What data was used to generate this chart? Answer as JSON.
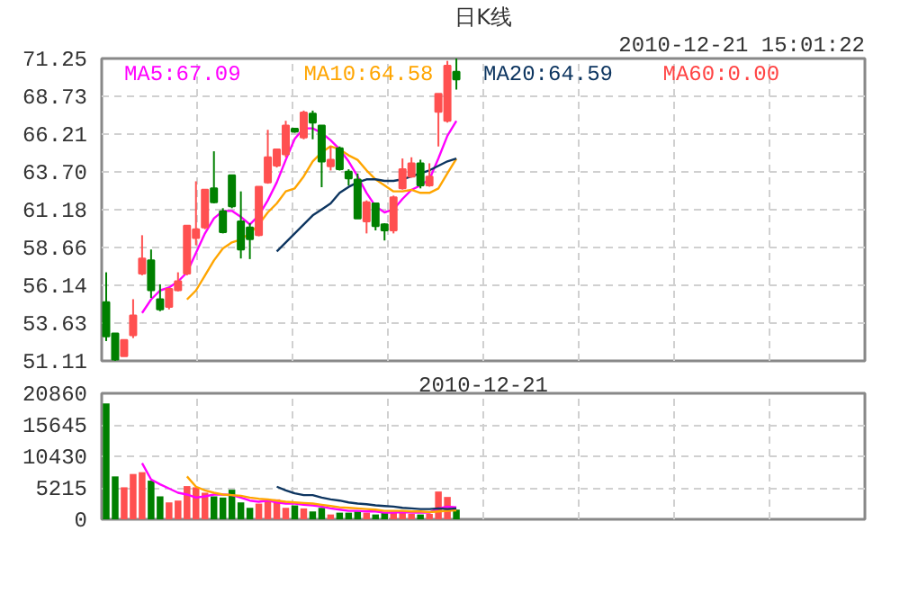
{
  "chart_data": [
    {
      "type": "candlestick",
      "title": "日K线",
      "annotations": [
        "2010-12-21 15:01:22"
      ],
      "categories": [
        null,
        null,
        null,
        null,
        null,
        null,
        null,
        null,
        null,
        null,
        null,
        null,
        null,
        null,
        null,
        null,
        null,
        null,
        null,
        null,
        null,
        null,
        null,
        null,
        null,
        null,
        null,
        null,
        null,
        null,
        null,
        null,
        null,
        null,
        null,
        null,
        null,
        null,
        null,
        null,
        null,
        null,
        null,
        null,
        null,
        null,
        null,
        null,
        null,
        null,
        null,
        null,
        null,
        null,
        null,
        null,
        null,
        null,
        null,
        null,
        null,
        null,
        null,
        null,
        null,
        null,
        null,
        null,
        null,
        null,
        null,
        null,
        null,
        null,
        null,
        null,
        null,
        null,
        null,
        null,
        null,
        null,
        null,
        null,
        null
      ],
      "ohlc": [
        [
          55.02,
          57.01,
          52.43,
          52.75
        ],
        [
          52.94,
          52.94,
          51.11,
          51.2
        ],
        [
          51.43,
          52.51,
          51.43,
          52.51
        ],
        [
          52.82,
          55.22,
          52.63,
          54.14
        ],
        [
          56.93,
          59.48,
          56.81,
          57.93
        ],
        [
          57.81,
          58.53,
          55.3,
          55.82
        ],
        [
          55.22,
          56.21,
          54.42,
          54.54
        ],
        [
          54.7,
          55.9,
          54.54,
          55.9
        ],
        [
          55.82,
          57.01,
          55.74,
          56.41
        ],
        [
          56.93,
          60.12,
          56.81,
          60.12
        ],
        [
          59.29,
          63.07,
          58.81,
          59.88
        ],
        [
          60.0,
          62.52,
          59.88,
          62.52
        ],
        [
          62.6,
          65.07,
          61.6,
          61.68
        ],
        [
          61.08,
          61.28,
          59.6,
          59.68
        ],
        [
          63.47,
          63.47,
          61.28,
          61.4
        ],
        [
          60.4,
          62.4,
          57.93,
          58.53
        ],
        [
          60.0,
          60.28,
          57.89,
          59.21
        ],
        [
          59.48,
          62.71,
          59.41,
          62.71
        ],
        [
          62.99,
          66.5,
          62.91,
          64.67
        ],
        [
          64.11,
          65.19,
          63.99,
          65.19
        ],
        [
          64.87,
          67.1,
          64.67,
          66.78
        ],
        [
          66.58,
          66.58,
          66.3,
          66.38
        ],
        [
          65.99,
          67.78,
          65.87,
          67.66
        ],
        [
          67.58,
          67.78,
          65.87,
          66.98
        ],
        [
          66.78,
          66.78,
          62.68,
          64.39
        ],
        [
          64.07,
          65.39,
          63.79,
          64.51
        ],
        [
          65.27,
          65.39,
          63.79,
          63.87
        ],
        [
          63.71,
          63.87,
          62.8,
          63.27
        ],
        [
          63.19,
          63.59,
          60.6,
          60.6
        ],
        [
          60.4,
          61.8,
          59.6,
          61.68
        ],
        [
          61.6,
          61.6,
          59.8,
          60.08
        ],
        [
          60.2,
          60.28,
          59.13,
          59.8
        ],
        [
          59.8,
          62.12,
          59.6,
          62.0
        ],
        [
          62.6,
          64.59,
          62.52,
          63.87
        ],
        [
          63.39,
          64.67,
          63.31,
          64.27
        ],
        [
          64.27,
          64.51,
          62.6,
          62.8
        ],
        [
          62.8,
          64.27,
          62.71,
          63.39
        ],
        [
          67.7,
          68.9,
          65.39,
          68.9
        ],
        [
          67.1,
          71.09,
          66.98,
          70.77
        ],
        [
          70.37,
          71.25,
          69.18,
          69.85
        ],
        null,
        null,
        null,
        null,
        null,
        null,
        null,
        null,
        null,
        null,
        null,
        null,
        null,
        null,
        null,
        null,
        null,
        null,
        null,
        null,
        null,
        null,
        null,
        null,
        null,
        null,
        null,
        null,
        null,
        null,
        null,
        null,
        null,
        null,
        null,
        null,
        null,
        null,
        null,
        null,
        null,
        null,
        null,
        null,
        null
      ],
      "colors": [
        "#008000",
        "#008000",
        "#ff5050",
        "#ff5050",
        "#ff5050",
        "#008000",
        "#008000",
        "#ff5050",
        "#ff5050",
        "#ff5050",
        "#ff5050",
        "#ff5050",
        "#008000",
        "#008000",
        "#008000",
        "#008000",
        "#008000",
        "#ff5050",
        "#ff5050",
        "#ff5050",
        "#ff5050",
        "#008000",
        "#ff5050",
        "#008000",
        "#008000",
        "#ff5050",
        "#008000",
        "#008000",
        "#008000",
        "#ff5050",
        "#008000",
        "#008000",
        "#ff5050",
        "#ff5050",
        "#ff5050",
        "#008000",
        "#ff5050",
        "#ff5050",
        "#ff5050",
        "#008000",
        null,
        null,
        null,
        null,
        null,
        null,
        null,
        null,
        null,
        null,
        null,
        null,
        null,
        null,
        null,
        null,
        null,
        null,
        null,
        null,
        null,
        null,
        null,
        null,
        null,
        null,
        null,
        null,
        null,
        null,
        null,
        null,
        null,
        null,
        null,
        null,
        null,
        null,
        null,
        null,
        null,
        null,
        null,
        null,
        null
      ],
      "series": [
        {
          "type": "line",
          "name": "MA5:67.09",
          "color": "#ff00ff",
          "values": [
            null,
            null,
            null,
            null,
            54.3,
            55.2,
            55.8,
            56.0,
            56.4,
            57.0,
            58.3,
            59.6,
            60.6,
            61.1,
            61.1,
            60.7,
            60.2,
            60.8,
            61.8,
            63.0,
            64.5,
            65.9,
            66.6,
            66.6,
            66.3,
            65.8,
            65.2,
            64.4,
            63.4,
            62.3,
            61.4,
            61.0,
            61.2,
            61.9,
            62.5,
            62.8,
            63.2,
            64.6,
            66.1,
            67.09,
            null,
            null,
            null,
            null,
            null,
            null,
            null,
            null,
            null,
            null,
            null,
            null,
            null,
            null,
            null,
            null,
            null,
            null,
            null,
            null,
            null,
            null,
            null,
            null,
            null,
            null,
            null,
            null,
            null,
            null,
            null,
            null,
            null,
            null,
            null,
            null,
            null,
            null,
            null,
            null,
            null,
            null,
            null,
            null,
            null
          ]
        },
        {
          "type": "line",
          "name": "MA10:64.58",
          "color": "#ffa500",
          "values": [
            null,
            null,
            null,
            null,
            null,
            null,
            null,
            null,
            null,
            55.2,
            55.8,
            56.8,
            57.8,
            58.6,
            59.0,
            59.2,
            59.6,
            60.2,
            61.0,
            61.6,
            62.4,
            62.6,
            63.4,
            64.4,
            65.0,
            65.4,
            65.2,
            64.8,
            64.5,
            63.8,
            63.2,
            62.8,
            62.4,
            62.4,
            62.5,
            62.3,
            62.3,
            62.6,
            63.6,
            64.58,
            null,
            null,
            null,
            null,
            null,
            null,
            null,
            null,
            null,
            null,
            null,
            null,
            null,
            null,
            null,
            null,
            null,
            null,
            null,
            null,
            null,
            null,
            null,
            null,
            null,
            null,
            null,
            null,
            null,
            null,
            null,
            null,
            null,
            null,
            null,
            null,
            null,
            null,
            null,
            null,
            null,
            null,
            null,
            null,
            null
          ]
        },
        {
          "type": "line",
          "name": "MA20:64.59",
          "color": "#0d3560",
          "values": [
            null,
            null,
            null,
            null,
            null,
            null,
            null,
            null,
            null,
            null,
            null,
            null,
            null,
            null,
            null,
            null,
            null,
            null,
            null,
            58.4,
            59.0,
            59.6,
            60.2,
            60.8,
            61.2,
            61.6,
            62.3,
            62.7,
            63.0,
            63.2,
            63.2,
            63.1,
            63.1,
            63.2,
            63.4,
            63.6,
            63.8,
            64.1,
            64.4,
            64.59,
            null,
            null,
            null,
            null,
            null,
            null,
            null,
            null,
            null,
            null,
            null,
            null,
            null,
            null,
            null,
            null,
            null,
            null,
            null,
            null,
            null,
            null,
            null,
            null,
            null,
            null,
            null,
            null,
            null,
            null,
            null,
            null,
            null,
            null,
            null,
            null,
            null,
            null,
            null,
            null,
            null,
            null,
            null,
            null,
            null
          ]
        },
        {
          "type": "line",
          "name": "MA60:0.00",
          "color": "#ff4444",
          "values": [
            null,
            null,
            null,
            null,
            null,
            null,
            null,
            null,
            null,
            null,
            null,
            null,
            null,
            null,
            null,
            null,
            null,
            null,
            null,
            null,
            null,
            null,
            null,
            null,
            null,
            null,
            null,
            null,
            null,
            null,
            null,
            null,
            null,
            null,
            null,
            null,
            null,
            null,
            null,
            null,
            null,
            null,
            null,
            null,
            null,
            null,
            null,
            null,
            null,
            null,
            null,
            null,
            null,
            null,
            null,
            null,
            null,
            null,
            null,
            null,
            null,
            null,
            null,
            null,
            null,
            null,
            null,
            null,
            null,
            null,
            null,
            null,
            null,
            null,
            null,
            null,
            null,
            null,
            null,
            null,
            null,
            null,
            null,
            null,
            null
          ]
        }
      ],
      "legend": "top",
      "grid": true,
      "tick_labels": "y",
      "ylim": [
        51.11,
        71.25
      ],
      "yticks": [
        51.11,
        53.63,
        56.14,
        58.66,
        61.18,
        {
          "value": 63.7,
          "label": "63.70"
        },
        66.21,
        68.73,
        71.25
      ]
    },
    {
      "type": "bar",
      "title": "2010-12-21",
      "categories": [
        null,
        null,
        null,
        null,
        null,
        null,
        null,
        null,
        null,
        null,
        null,
        null,
        null,
        null,
        null,
        null,
        null,
        null,
        null,
        null,
        null,
        null,
        null,
        null,
        null,
        null,
        null,
        null,
        null,
        null,
        null,
        null,
        null,
        null,
        null,
        null,
        null,
        null,
        null,
        null,
        null,
        null,
        null,
        null,
        null,
        null,
        null,
        null,
        null,
        null,
        null,
        null,
        null,
        null,
        null,
        null,
        null,
        null,
        null,
        null,
        null,
        null,
        null,
        null,
        null,
        null,
        null,
        null,
        null,
        null,
        null,
        null,
        null,
        null,
        null,
        null,
        null,
        null,
        null,
        null,
        null,
        null,
        null,
        null,
        null
      ],
      "series": [
        {
          "type": "bar",
          "values": [
            19200,
            7100,
            5300,
            7500,
            7800,
            6400,
            3800,
            2800,
            3100,
            5500,
            5300,
            4400,
            3800,
            3600,
            4900,
            2800,
            1900,
            2600,
            3100,
            3300,
            1900,
            2300,
            1800,
            1300,
            1900,
            800,
            1100,
            1100,
            1300,
            1100,
            800,
            1100,
            1300,
            1100,
            900,
            800,
            900,
            4600,
            3700,
            1600,
            null,
            null,
            null,
            null,
            null,
            null,
            null,
            null,
            null,
            null,
            null,
            null,
            null,
            null,
            null,
            null,
            null,
            null,
            null,
            null,
            null,
            null,
            null,
            null,
            null,
            null,
            null,
            null,
            null,
            null,
            null,
            null,
            null,
            null,
            null,
            null,
            null,
            null,
            null,
            null,
            null,
            null,
            null,
            null,
            null
          ],
          "colors": [
            "#008000",
            "#008000",
            "#ff5050",
            "#ff5050",
            "#ff5050",
            "#008000",
            "#008000",
            "#ff5050",
            "#ff5050",
            "#ff5050",
            "#ff5050",
            "#ff5050",
            "#008000",
            "#008000",
            "#008000",
            "#008000",
            "#008000",
            "#ff5050",
            "#ff5050",
            "#ff5050",
            "#ff5050",
            "#008000",
            "#ff5050",
            "#008000",
            "#008000",
            "#ff5050",
            "#008000",
            "#008000",
            "#008000",
            "#ff5050",
            "#008000",
            "#008000",
            "#ff5050",
            "#ff5050",
            "#ff5050",
            "#008000",
            "#ff5050",
            "#ff5050",
            "#ff5050",
            "#008000",
            null,
            null,
            null,
            null,
            null,
            null,
            null,
            null,
            null,
            null,
            null,
            null,
            null,
            null,
            null,
            null,
            null,
            null,
            null,
            null,
            null,
            null,
            null,
            null,
            null,
            null,
            null,
            null,
            null,
            null,
            null,
            null,
            null,
            null,
            null,
            null,
            null,
            null,
            null,
            null,
            null,
            null,
            null,
            null,
            null
          ]
        },
        {
          "type": "line",
          "color": "#ff00ff",
          "values": [
            null,
            null,
            null,
            null,
            9300,
            6600,
            5800,
            5100,
            4400,
            4100,
            3600,
            3800,
            4100,
            4100,
            4000,
            3600,
            3100,
            2900,
            3100,
            2800,
            2600,
            2600,
            2400,
            2300,
            2100,
            1800,
            1600,
            1400,
            1400,
            1300,
            1300,
            1100,
            1100,
            1200,
            1100,
            1100,
            1100,
            1800,
            2100,
            2000,
            null,
            null,
            null,
            null,
            null,
            null,
            null,
            null,
            null,
            null,
            null,
            null,
            null,
            null,
            null,
            null,
            null,
            null,
            null,
            null,
            null,
            null,
            null,
            null,
            null,
            null,
            null,
            null,
            null,
            null,
            null,
            null,
            null,
            null,
            null,
            null,
            null,
            null,
            null,
            null,
            null,
            null,
            null,
            null,
            null
          ]
        },
        {
          "type": "line",
          "color": "#ffa500",
          "values": [
            null,
            null,
            null,
            null,
            null,
            null,
            null,
            null,
            null,
            7100,
            5400,
            4800,
            4400,
            4100,
            4000,
            3900,
            3600,
            3400,
            3300,
            3100,
            2900,
            2800,
            2700,
            2600,
            2400,
            2200,
            2000,
            1900,
            1800,
            1700,
            1600,
            1400,
            1400,
            1400,
            1300,
            1300,
            1200,
            1300,
            1400,
            1500,
            null,
            null,
            null,
            null,
            null,
            null,
            null,
            null,
            null,
            null,
            null,
            null,
            null,
            null,
            null,
            null,
            null,
            null,
            null,
            null,
            null,
            null,
            null,
            null,
            null,
            null,
            null,
            null,
            null,
            null,
            null,
            null,
            null,
            null,
            null,
            null,
            null,
            null,
            null,
            null,
            null,
            null,
            null,
            null,
            null
          ]
        },
        {
          "type": "line",
          "color": "#0d3560",
          "values": [
            null,
            null,
            null,
            null,
            null,
            null,
            null,
            null,
            null,
            null,
            null,
            null,
            null,
            null,
            null,
            null,
            null,
            null,
            null,
            5400,
            4800,
            4300,
            4000,
            4000,
            3600,
            3300,
            3100,
            2800,
            2600,
            2500,
            2300,
            2200,
            2100,
            1900,
            1800,
            1700,
            1700,
            1800,
            1700,
            1800,
            null,
            null,
            null,
            null,
            null,
            null,
            null,
            null,
            null,
            null,
            null,
            null,
            null,
            null,
            null,
            null,
            null,
            null,
            null,
            null,
            null,
            null,
            null,
            null,
            null,
            null,
            null,
            null,
            null,
            null,
            null,
            null,
            null,
            null,
            null,
            null,
            null,
            null,
            null,
            null,
            null,
            null,
            null,
            null,
            null
          ]
        }
      ],
      "grid": true,
      "tick_labels": "y",
      "ylim": [
        0,
        20860
      ],
      "yticks": [
        0,
        5215,
        10430,
        15645,
        20860
      ]
    }
  ]
}
